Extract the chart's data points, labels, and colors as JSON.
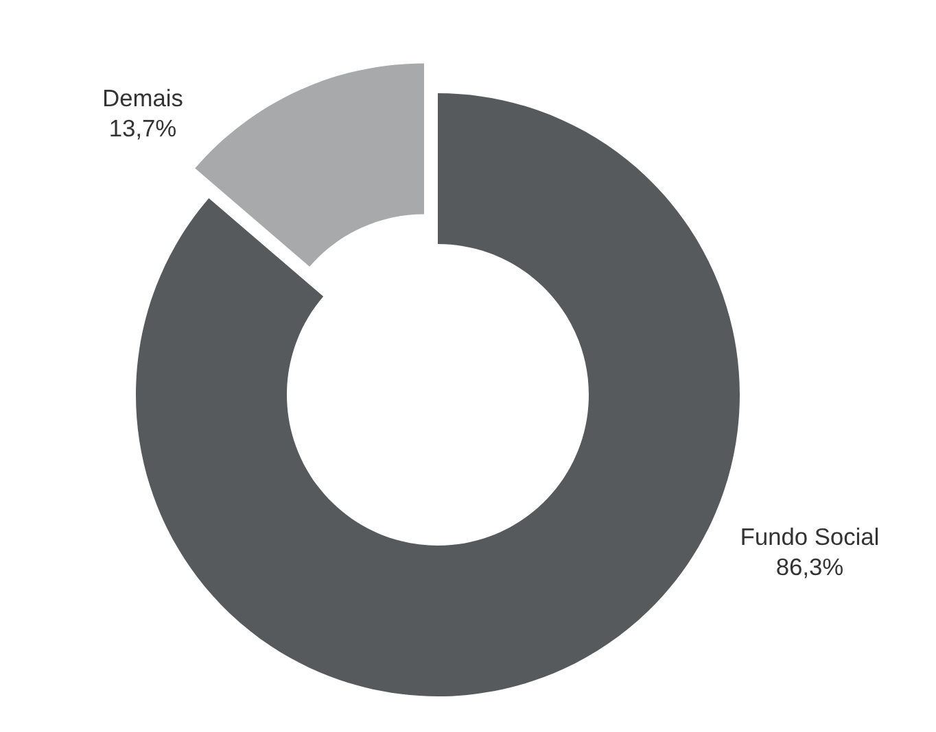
{
  "chart_data": {
    "type": "donut",
    "categories": [
      "Fundo Social",
      "Demais"
    ],
    "values": [
      86.3,
      13.7
    ],
    "value_labels": [
      "86,3%",
      "13,7%"
    ],
    "colors": [
      "#575a5c",
      "#a7a9aa"
    ],
    "legend": false
  }
}
